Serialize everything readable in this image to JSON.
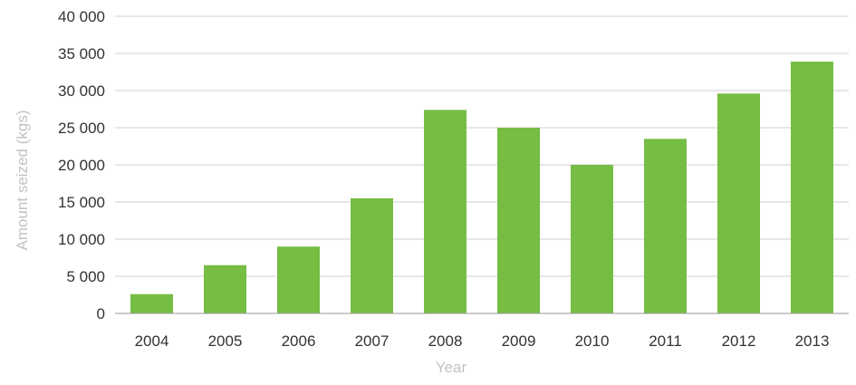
{
  "chart_data": {
    "type": "bar",
    "title": "",
    "xlabel": "Year",
    "ylabel": "Amount seized (kgs)",
    "categories": [
      "2004",
      "2005",
      "2006",
      "2007",
      "2008",
      "2009",
      "2010",
      "2011",
      "2012",
      "2013"
    ],
    "values": [
      2600,
      6500,
      9000,
      15500,
      27400,
      25000,
      20000,
      23500,
      29600,
      33900
    ],
    "ylim": [
      0,
      40000
    ],
    "yticks": [
      0,
      5000,
      10000,
      15000,
      20000,
      25000,
      30000,
      35000,
      40000
    ],
    "ytick_labels": [
      "0",
      "5 000",
      "10 000",
      "15 000",
      "20 000",
      "25 000",
      "30 000",
      "35 000",
      "40 000"
    ],
    "grid": true,
    "legend": "none",
    "bar_color": "#76bd43",
    "grid_color": "#cfcfcf",
    "axis_color": "#9a9a9a"
  }
}
